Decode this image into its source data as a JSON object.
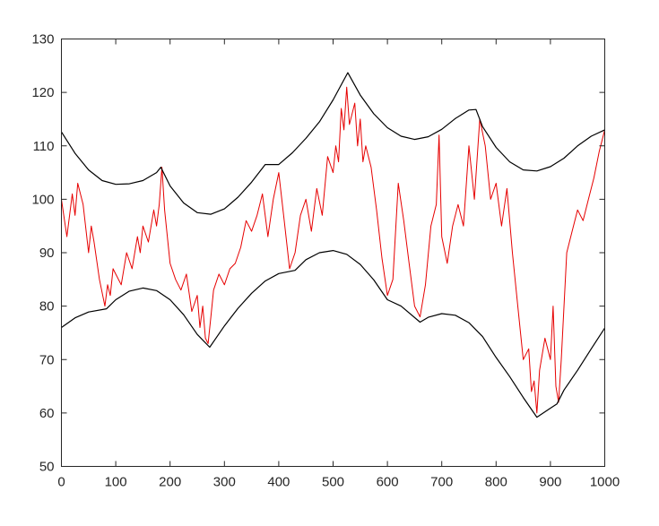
{
  "chart_data": {
    "type": "line",
    "title": "",
    "xlabel": "",
    "ylabel": "",
    "xlim": [
      0,
      1000
    ],
    "ylim": [
      50,
      130
    ],
    "x_ticks": [
      0,
      100,
      200,
      300,
      400,
      500,
      600,
      700,
      800,
      900,
      1000
    ],
    "x_tick_labels": [
      "0",
      "100",
      "200",
      "300",
      "400",
      "500",
      "600",
      "700",
      "800",
      "900",
      "1000"
    ],
    "y_ticks": [
      50,
      60,
      70,
      80,
      90,
      100,
      110,
      120,
      130
    ],
    "y_tick_labels": [
      "50",
      "60",
      "70",
      "80",
      "90",
      "100",
      "110",
      "120",
      "130"
    ],
    "grid": false,
    "legend": "none",
    "series": [
      {
        "color": "#e60000",
        "x": [
          0,
          10,
          20,
          25,
          30,
          40,
          50,
          55,
          60,
          70,
          80,
          85,
          90,
          95,
          100,
          110,
          120,
          130,
          140,
          145,
          150,
          160,
          170,
          175,
          180,
          185,
          190,
          200,
          210,
          220,
          230,
          240,
          250,
          255,
          260,
          265,
          270,
          275,
          280,
          290,
          300,
          310,
          320,
          330,
          340,
          350,
          360,
          370,
          380,
          390,
          400,
          410,
          420,
          430,
          440,
          450,
          460,
          470,
          480,
          490,
          500,
          505,
          510,
          515,
          520,
          525,
          530,
          540,
          545,
          550,
          555,
          560,
          570,
          580,
          590,
          600,
          610,
          620,
          630,
          640,
          650,
          660,
          670,
          680,
          690,
          695,
          700,
          710,
          720,
          730,
          740,
          750,
          760,
          770,
          780,
          790,
          800,
          810,
          820,
          830,
          840,
          850,
          860,
          865,
          870,
          875,
          880,
          890,
          900,
          905,
          910,
          915,
          920,
          930,
          940,
          950,
          960,
          970,
          980,
          990,
          1000
        ],
        "values": [
          100,
          93,
          101,
          97,
          103,
          99,
          90,
          95,
          92,
          85,
          80,
          84,
          82,
          87,
          86,
          84,
          90,
          87,
          93,
          90,
          95,
          92,
          98,
          95,
          99,
          106,
          98,
          88,
          85,
          83,
          86,
          79,
          82,
          76,
          80,
          74,
          73,
          78,
          83,
          86,
          84,
          87,
          88,
          91,
          96,
          94,
          97,
          101,
          93,
          100,
          105,
          96,
          87,
          90,
          97,
          100,
          94,
          102,
          97,
          108,
          105,
          110,
          107,
          117,
          113,
          121,
          114,
          118,
          110,
          115,
          107,
          110,
          106,
          98,
          89,
          82,
          85,
          103,
          96,
          88,
          80,
          78,
          84,
          95,
          99,
          112,
          93,
          88,
          95,
          99,
          95,
          110,
          100,
          115,
          110,
          100,
          103,
          95,
          102,
          90,
          80,
          70,
          72,
          64,
          66,
          60,
          68,
          74,
          70,
          80,
          65,
          62,
          70,
          90,
          94,
          98,
          96,
          100,
          104,
          109,
          113
        ]
      },
      {
        "color": "#000000",
        "x": [
          0,
          25,
          50,
          75,
          100,
          125,
          150,
          175,
          183,
          200,
          225,
          250,
          275,
          300,
          325,
          350,
          375,
          400,
          425,
          450,
          475,
          500,
          527,
          550,
          575,
          600,
          625,
          650,
          675,
          700,
          725,
          750,
          763,
          775,
          800,
          825,
          850,
          875,
          900,
          925,
          950,
          975,
          1000
        ],
        "values": [
          112.6,
          108.6,
          105.5,
          103.5,
          102.8,
          102.9,
          103.5,
          105,
          106,
          102.5,
          99.3,
          97.5,
          97.2,
          98.2,
          100.4,
          103.2,
          106.5,
          106.5,
          108.7,
          111.4,
          114.5,
          118.6,
          123.7,
          119.5,
          116,
          113.4,
          111.8,
          111.2,
          111.7,
          113.1,
          115.1,
          116.7,
          116.8,
          113.6,
          109.7,
          107,
          105.5,
          105.3,
          106.1,
          107.7,
          110,
          111.8,
          113
        ]
      },
      {
        "color": "#000000",
        "x": [
          0,
          25,
          50,
          83,
          100,
          125,
          150,
          175,
          200,
          225,
          250,
          273,
          300,
          325,
          350,
          375,
          400,
          430,
          450,
          475,
          500,
          525,
          550,
          575,
          600,
          625,
          660,
          675,
          700,
          725,
          750,
          775,
          800,
          825,
          850,
          875,
          900,
          912,
          925,
          950,
          975,
          1000
        ],
        "values": [
          76,
          77.8,
          78.9,
          79.5,
          81.2,
          82.8,
          83.4,
          82.9,
          81.2,
          78.4,
          74.7,
          72.3,
          76.3,
          79.6,
          82.4,
          84.7,
          86.1,
          86.7,
          88.7,
          90,
          90.4,
          89.7,
          87.8,
          84.9,
          81.2,
          80,
          77,
          77.9,
          78.6,
          78.3,
          76.9,
          74.3,
          70.4,
          66.8,
          62.9,
          59.2,
          60.9,
          61.7,
          64.3,
          68,
          72,
          75.9
        ]
      }
    ]
  }
}
